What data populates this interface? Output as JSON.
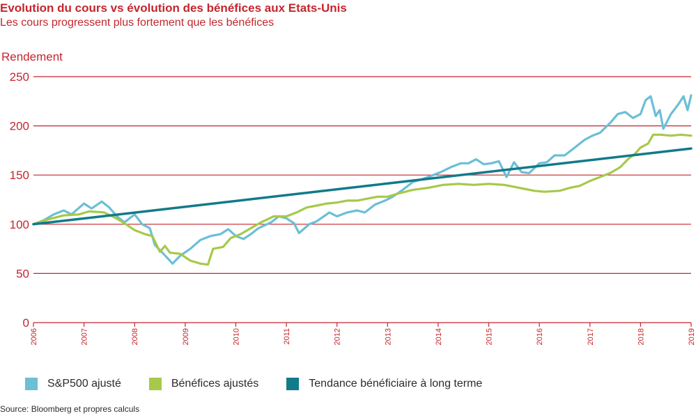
{
  "header": {
    "title": "Evolution du cours vs évolution des bénéfices aux Etats-Unis",
    "subtitle": "Les cours progressent plus fortement que les bénéfices"
  },
  "source": "Source: Bloomberg et propres calculs",
  "colors": {
    "text": "#c4262e",
    "grid": "#c4262e",
    "sp500": "#6bbfd6",
    "benefices": "#a6c94a",
    "tendance": "#127a8a"
  },
  "chart_data": {
    "type": "line",
    "ylabel": "Rendement",
    "xlabel": "",
    "xlim": [
      2006,
      2019
    ],
    "ylim": [
      0,
      250
    ],
    "yticks": [
      0,
      50,
      100,
      150,
      200,
      250
    ],
    "xtick_labels": [
      "2006",
      "2007",
      "2008",
      "2009",
      "2010",
      "2011",
      "2012",
      "2013",
      "2014",
      "2015",
      "2016",
      "2017",
      "2018",
      "2019"
    ],
    "grid": true,
    "legend_position": "bottom",
    "series": [
      {
        "name": "S&P500 ajusté",
        "color": "#6bbfd6",
        "points": [
          [
            2006.0,
            100
          ],
          [
            2006.2,
            104
          ],
          [
            2006.4,
            110
          ],
          [
            2006.6,
            114
          ],
          [
            2006.75,
            110
          ],
          [
            2007.0,
            121
          ],
          [
            2007.15,
            116
          ],
          [
            2007.35,
            123
          ],
          [
            2007.5,
            117
          ],
          [
            2007.65,
            108
          ],
          [
            2007.8,
            102
          ],
          [
            2008.0,
            110
          ],
          [
            2008.15,
            100
          ],
          [
            2008.3,
            96
          ],
          [
            2008.4,
            79
          ],
          [
            2008.55,
            71
          ],
          [
            2008.75,
            60
          ],
          [
            2008.9,
            68
          ],
          [
            2009.1,
            75
          ],
          [
            2009.3,
            84
          ],
          [
            2009.5,
            88
          ],
          [
            2009.7,
            90
          ],
          [
            2009.85,
            95
          ],
          [
            2010.0,
            88
          ],
          [
            2010.15,
            85
          ],
          [
            2010.3,
            90
          ],
          [
            2010.45,
            96
          ],
          [
            2010.7,
            102
          ],
          [
            2010.85,
            108
          ],
          [
            2011.0,
            106
          ],
          [
            2011.15,
            101
          ],
          [
            2011.25,
            91
          ],
          [
            2011.45,
            100
          ],
          [
            2011.6,
            103
          ],
          [
            2011.85,
            112
          ],
          [
            2012.0,
            108
          ],
          [
            2012.2,
            112
          ],
          [
            2012.4,
            114
          ],
          [
            2012.55,
            112
          ],
          [
            2012.75,
            120
          ],
          [
            2012.95,
            124
          ],
          [
            2013.1,
            128
          ],
          [
            2013.3,
            135
          ],
          [
            2013.5,
            143
          ],
          [
            2013.7,
            146
          ],
          [
            2013.9,
            150
          ],
          [
            2014.05,
            153
          ],
          [
            2014.25,
            158
          ],
          [
            2014.45,
            162
          ],
          [
            2014.6,
            162
          ],
          [
            2014.75,
            166
          ],
          [
            2014.9,
            161
          ],
          [
            2015.05,
            162
          ],
          [
            2015.2,
            164
          ],
          [
            2015.35,
            148
          ],
          [
            2015.5,
            163
          ],
          [
            2015.65,
            153
          ],
          [
            2015.8,
            152
          ],
          [
            2016.0,
            162
          ],
          [
            2016.15,
            163
          ],
          [
            2016.3,
            170
          ],
          [
            2016.5,
            170
          ],
          [
            2016.7,
            178
          ],
          [
            2016.9,
            186
          ],
          [
            2017.05,
            190
          ],
          [
            2017.2,
            193
          ],
          [
            2017.4,
            203
          ],
          [
            2017.55,
            212
          ],
          [
            2017.7,
            214
          ],
          [
            2017.85,
            208
          ],
          [
            2018.0,
            212
          ],
          [
            2018.1,
            226
          ],
          [
            2018.2,
            230
          ],
          [
            2018.3,
            210
          ],
          [
            2018.38,
            216
          ],
          [
            2018.45,
            197
          ],
          [
            2018.6,
            212
          ],
          [
            2018.75,
            222
          ],
          [
            2018.85,
            230
          ],
          [
            2018.93,
            216
          ],
          [
            2019.0,
            231
          ]
        ]
      },
      {
        "name": "Bénéfices ajustés",
        "color": "#a6c94a",
        "points": [
          [
            2006.0,
            100
          ],
          [
            2006.3,
            105
          ],
          [
            2006.6,
            109
          ],
          [
            2006.9,
            110
          ],
          [
            2007.1,
            113
          ],
          [
            2007.4,
            112
          ],
          [
            2007.6,
            107
          ],
          [
            2007.8,
            101
          ],
          [
            2008.0,
            94
          ],
          [
            2008.2,
            90
          ],
          [
            2008.35,
            88
          ],
          [
            2008.5,
            72
          ],
          [
            2008.6,
            78
          ],
          [
            2008.7,
            71
          ],
          [
            2008.9,
            70
          ],
          [
            2009.1,
            63
          ],
          [
            2009.3,
            60
          ],
          [
            2009.45,
            59
          ],
          [
            2009.55,
            75
          ],
          [
            2009.75,
            77
          ],
          [
            2009.9,
            86
          ],
          [
            2010.1,
            90
          ],
          [
            2010.3,
            96
          ],
          [
            2010.5,
            102
          ],
          [
            2010.75,
            108
          ],
          [
            2011.0,
            108
          ],
          [
            2011.2,
            112
          ],
          [
            2011.4,
            117
          ],
          [
            2011.6,
            119
          ],
          [
            2011.8,
            121
          ],
          [
            2012.0,
            122
          ],
          [
            2012.2,
            124
          ],
          [
            2012.4,
            124
          ],
          [
            2012.6,
            126
          ],
          [
            2012.8,
            128
          ],
          [
            2013.0,
            128
          ],
          [
            2013.2,
            131
          ],
          [
            2013.5,
            135
          ],
          [
            2013.8,
            137
          ],
          [
            2014.1,
            140
          ],
          [
            2014.4,
            141
          ],
          [
            2014.7,
            140
          ],
          [
            2015.0,
            141
          ],
          [
            2015.3,
            140
          ],
          [
            2015.5,
            138
          ],
          [
            2015.7,
            136
          ],
          [
            2015.9,
            134
          ],
          [
            2016.1,
            133
          ],
          [
            2016.4,
            134
          ],
          [
            2016.6,
            137
          ],
          [
            2016.8,
            139
          ],
          [
            2017.0,
            144
          ],
          [
            2017.2,
            148
          ],
          [
            2017.4,
            152
          ],
          [
            2017.6,
            158
          ],
          [
            2017.75,
            166
          ],
          [
            2017.9,
            172
          ],
          [
            2018.0,
            178
          ],
          [
            2018.15,
            182
          ],
          [
            2018.25,
            191
          ],
          [
            2018.4,
            191
          ],
          [
            2018.6,
            190
          ],
          [
            2018.8,
            191
          ],
          [
            2019.0,
            190
          ]
        ]
      },
      {
        "name": "Tendance bénéficiaire à long terme",
        "color": "#127a8a",
        "points": [
          [
            2006.0,
            100
          ],
          [
            2019.0,
            177
          ]
        ]
      }
    ]
  }
}
